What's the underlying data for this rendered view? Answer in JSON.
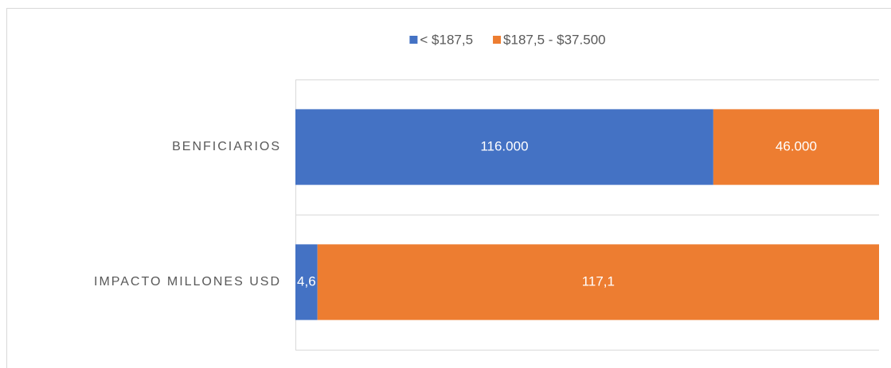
{
  "chart_data": {
    "type": "bar",
    "orientation": "horizontal",
    "stacking": "percent",
    "legend": "top",
    "categories": [
      "BENFICIARIOS",
      "IMPACTO MILLONES USD"
    ],
    "series": [
      {
        "name": "< $187,5",
        "color": "#4472c4",
        "values": [
          116000,
          4.6
        ],
        "value_labels": [
          "116.000",
          "4,6"
        ]
      },
      {
        "name": "$187,5 - $37.500",
        "color": "#ed7d31",
        "values": [
          46000,
          117.1
        ],
        "value_labels": [
          "46.000",
          "117,1"
        ]
      }
    ]
  }
}
